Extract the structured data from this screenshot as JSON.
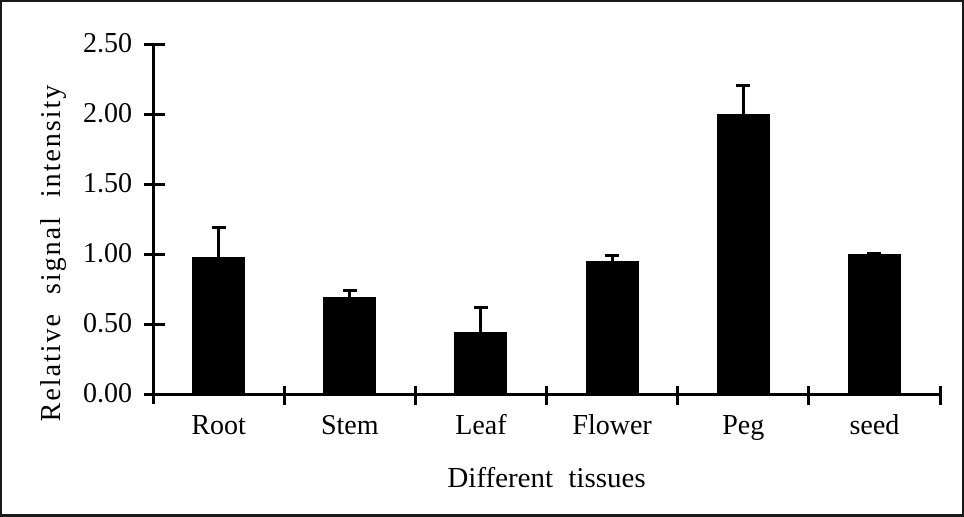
{
  "figure": {
    "background_color": "#ffffff",
    "frame_color": "#1a1a1a",
    "text_color": "#000000"
  },
  "chart_data": {
    "type": "bar",
    "title": "",
    "xlabel": "Different tissues",
    "ylabel": "Relative signal intensity",
    "categories": [
      "Root",
      "Stem",
      "Leaf",
      "Flower",
      "Peg",
      "seed"
    ],
    "values": [
      0.98,
      0.69,
      0.44,
      0.95,
      2.0,
      1.0
    ],
    "errors": [
      0.21,
      0.05,
      0.18,
      0.04,
      0.21,
      0.01
    ],
    "error_direction": "upper-only",
    "y_ticks": [
      0.0,
      0.5,
      1.0,
      1.5,
      2.0,
      2.5
    ],
    "y_tick_labels": [
      "0.00",
      "0.50",
      "1.00",
      "1.50",
      "2.00",
      "2.50"
    ],
    "ylim": [
      0,
      2.5
    ],
    "bar_color": "#000000",
    "axis_color": "#000000",
    "grid": false,
    "legend": null
  }
}
